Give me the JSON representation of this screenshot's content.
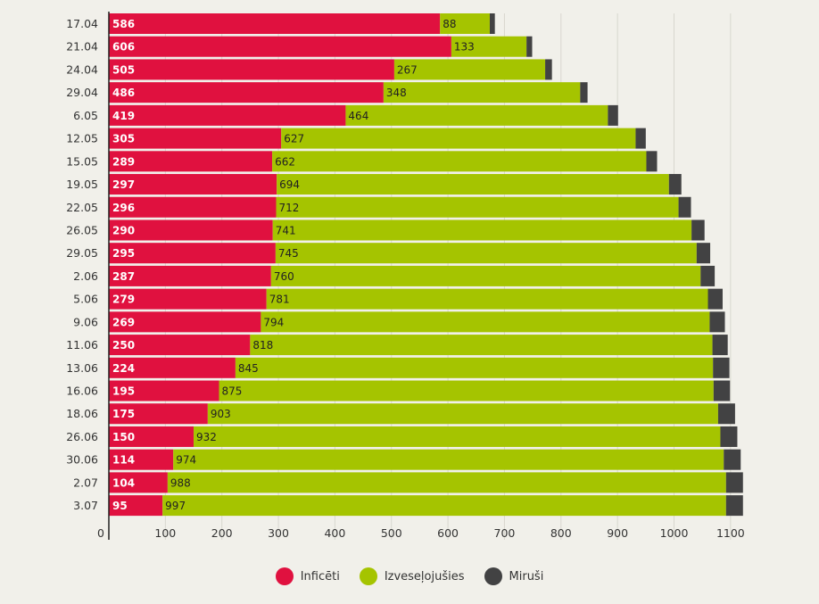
{
  "chart_data": {
    "type": "bar",
    "orientation": "horizontal",
    "stacked": true,
    "categories": [
      "17.04",
      "21.04",
      "24.04",
      "29.04",
      "6.05",
      "12.05",
      "15.05",
      "19.05",
      "22.05",
      "26.05",
      "29.05",
      "2.06",
      "5.06",
      "9.06",
      "11.06",
      "13.06",
      "16.06",
      "18.06",
      "26.06",
      "30.06",
      "2.07",
      "3.07"
    ],
    "series": [
      {
        "name": "Inficēti",
        "color": "#e0113f",
        "values": [
          586,
          606,
          505,
          486,
          419,
          305,
          289,
          297,
          296,
          290,
          295,
          287,
          279,
          269,
          250,
          224,
          195,
          175,
          150,
          114,
          104,
          95
        ]
      },
      {
        "name": "Izveseļojušies",
        "color": "#a5c400",
        "values": [
          88,
          133,
          267,
          348,
          464,
          627,
          662,
          694,
          712,
          741,
          745,
          760,
          781,
          794,
          818,
          845,
          875,
          903,
          932,
          974,
          988,
          997
        ]
      },
      {
        "name": "Miruši",
        "color": "#424243",
        "values": [
          9,
          10,
          12,
          13,
          18,
          18,
          19,
          22,
          22,
          23,
          24,
          25,
          26,
          27,
          27,
          29,
          29,
          30,
          30,
          30,
          30,
          30
        ]
      }
    ],
    "xlim": [
      0,
      1120
    ],
    "xticks": [
      "0",
      "100",
      "200",
      "300",
      "400",
      "500",
      "600",
      "700",
      "800",
      "900",
      "1000",
      "1100"
    ],
    "grid": true,
    "legend_position": "bottom-center"
  }
}
